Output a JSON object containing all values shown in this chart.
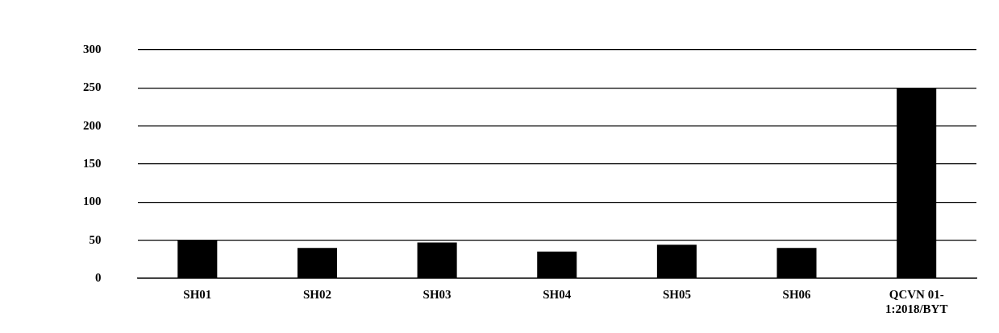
{
  "chart_data": {
    "type": "bar",
    "categories": [
      "SH01",
      "SH02",
      "SH03",
      "SH04",
      "SH05",
      "SH06",
      "QCVN 01-1:2018/BYT"
    ],
    "values": [
      50,
      40,
      47,
      35,
      44,
      40,
      250
    ],
    "color": "#000000",
    "ylim": [
      0,
      300
    ],
    "yticks": [
      0,
      50,
      100,
      150,
      200,
      250,
      300
    ],
    "grid": "y"
  }
}
